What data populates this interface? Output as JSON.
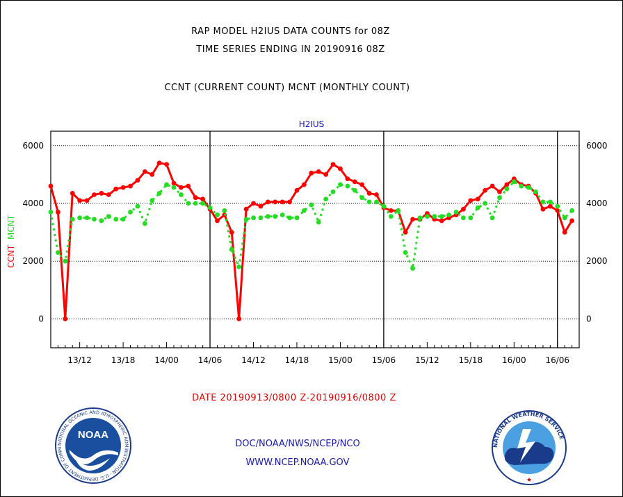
{
  "header": {
    "line1": "RAP MODEL H2IUS DATA COUNTS for 08Z",
    "line2": "TIME SERIES ENDING IN 20190916 08Z",
    "line3": "CCNT (CURRENT COUNT) MCNT (MONTHLY COUNT)"
  },
  "footer": {
    "date_range": "DATE 20190913/0800 Z-20190916/0800 Z",
    "org": "DOC/NOAA/NWS/NCEP/NCO",
    "url": "WWW.NCEP.NOAA.GOV"
  },
  "logos": {
    "noaa": {
      "center_text": "NOAA",
      "ring_text": "NATIONAL OCEANIC AND ATMOSPHERIC ADMINISTRATION · U.S. DEPARTMENT OF COMMERCE"
    },
    "nws": {
      "ring_text": "NATIONAL WEATHER SERVICE"
    }
  },
  "colors": {
    "ccnt": "#ff0000",
    "mcnt": "#22dd22",
    "title_blue": "#1010c0"
  },
  "chart_data": {
    "type": "line",
    "title": "H2IUS",
    "ylabel_left": [
      "CCNT",
      "MCNT"
    ],
    "ylim": [
      -1000,
      6500
    ],
    "yticks": [
      0,
      2000,
      4000,
      6000
    ],
    "xlim": [
      0,
      73
    ],
    "xticks": [
      {
        "x": 4,
        "label": "13/12"
      },
      {
        "x": 10,
        "label": "13/18"
      },
      {
        "x": 16,
        "label": "14/00"
      },
      {
        "x": 22,
        "label": "14/06"
      },
      {
        "x": 28,
        "label": "14/12"
      },
      {
        "x": 34,
        "label": "14/18"
      },
      {
        "x": 40,
        "label": "15/00"
      },
      {
        "x": 46,
        "label": "15/06"
      },
      {
        "x": 52,
        "label": "15/12"
      },
      {
        "x": 58,
        "label": "15/18"
      },
      {
        "x": 64,
        "label": "16/00"
      },
      {
        "x": 70,
        "label": "16/06"
      }
    ],
    "day_boundaries": [
      22,
      46,
      70
    ],
    "series": [
      {
        "name": "CCNT",
        "color": "#ff0000",
        "values": [
          4600,
          3700,
          0,
          4350,
          4100,
          4100,
          4300,
          4350,
          4300,
          4500,
          4550,
          4600,
          4800,
          5100,
          5000,
          5400,
          5350,
          4700,
          4550,
          4600,
          4200,
          4150,
          3800,
          3400,
          3600,
          3000,
          0,
          3800,
          4000,
          3900,
          4050,
          4050,
          4050,
          4050,
          4450,
          4650,
          5050,
          5100,
          5000,
          5350,
          5200,
          4850,
          4750,
          4650,
          4350,
          4300,
          3850,
          3750,
          3750,
          3000,
          3450,
          3450,
          3650,
          3450,
          3400,
          3500,
          3600,
          3800,
          4100,
          4150,
          4450,
          4600,
          4400,
          4650,
          4850,
          4650,
          4600,
          4350,
          3800,
          3900,
          3750,
          3000,
          3400
        ]
      },
      {
        "name": "MCNT",
        "color": "#22dd22",
        "values": [
          3700,
          2300,
          2000,
          3450,
          3500,
          3500,
          3450,
          3400,
          3550,
          3450,
          3450,
          3700,
          3900,
          3300,
          4100,
          4350,
          4650,
          4550,
          4300,
          4000,
          4000,
          4000,
          3850,
          3600,
          3750,
          2400,
          1800,
          3450,
          3500,
          3500,
          3550,
          3550,
          3600,
          3500,
          3500,
          3750,
          3950,
          3350,
          4150,
          4400,
          4650,
          4600,
          4450,
          4200,
          4050,
          4050,
          3900,
          3550,
          3750,
          2300,
          1750,
          3500,
          3550,
          3550,
          3550,
          3600,
          3700,
          3500,
          3500,
          3850,
          4000,
          3500,
          4200,
          4500,
          4750,
          4600,
          4550,
          4400,
          4050,
          4050,
          3900,
          3500,
          3750
        ]
      }
    ]
  }
}
